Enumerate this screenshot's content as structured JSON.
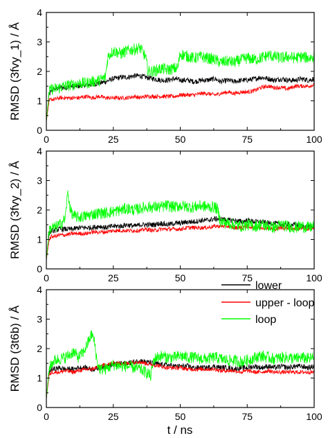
{
  "figure": {
    "xlabel": "t / ns",
    "legend": {
      "placement": "upper-right of bottom panel",
      "entries": [
        {
          "label": "lower",
          "color": "#000000"
        },
        {
          "label": "upper - loop",
          "color": "#ff0000"
        },
        {
          "label": "loop",
          "color": "#00ff00"
        }
      ]
    }
  },
  "chart_data": [
    {
      "type": "line",
      "ylabel": "RMSD (3fvy_1) / Å",
      "xlim": [
        0,
        100
      ],
      "ylim": [
        0,
        4
      ],
      "xticks": [
        0,
        25,
        50,
        75,
        100
      ],
      "yticks": [
        0,
        1,
        2,
        3,
        4
      ],
      "grid": false,
      "series": [
        {
          "name": "lower",
          "color": "#000000",
          "x": [
            0,
            1,
            2,
            3,
            5,
            7,
            10,
            12,
            15,
            17,
            20,
            22,
            25,
            28,
            30,
            33,
            35,
            37,
            40,
            43,
            45,
            48,
            50,
            53,
            55,
            58,
            60,
            63,
            65,
            68,
            70,
            73,
            75,
            78,
            80,
            83,
            85,
            88,
            90,
            93,
            95,
            98,
            100
          ],
          "y": [
            0.3,
            1.2,
            1.35,
            1.4,
            1.45,
            1.45,
            1.5,
            1.5,
            1.55,
            1.55,
            1.6,
            1.65,
            1.75,
            1.8,
            1.8,
            1.85,
            1.85,
            1.8,
            1.75,
            1.7,
            1.7,
            1.75,
            1.7,
            1.7,
            1.65,
            1.7,
            1.7,
            1.75,
            1.65,
            1.7,
            1.65,
            1.7,
            1.7,
            1.75,
            1.8,
            1.75,
            1.7,
            1.75,
            1.7,
            1.7,
            1.75,
            1.7,
            1.75
          ]
        },
        {
          "name": "upper - loop",
          "color": "#ff0000",
          "x": [
            0,
            1,
            2,
            3,
            5,
            7,
            10,
            12,
            15,
            17,
            20,
            22,
            25,
            28,
            30,
            33,
            35,
            37,
            40,
            43,
            45,
            48,
            50,
            53,
            55,
            58,
            60,
            63,
            65,
            68,
            70,
            73,
            75,
            78,
            80,
            83,
            85,
            88,
            90,
            93,
            95,
            98,
            100
          ],
          "y": [
            0.3,
            1.0,
            1.05,
            1.05,
            1.1,
            1.1,
            1.1,
            1.1,
            1.15,
            1.1,
            1.15,
            1.1,
            1.1,
            1.1,
            1.1,
            1.15,
            1.1,
            1.15,
            1.15,
            1.15,
            1.15,
            1.15,
            1.2,
            1.2,
            1.2,
            1.25,
            1.25,
            1.2,
            1.25,
            1.3,
            1.25,
            1.3,
            1.3,
            1.35,
            1.45,
            1.5,
            1.45,
            1.45,
            1.4,
            1.5,
            1.5,
            1.5,
            1.55
          ]
        },
        {
          "name": "loop",
          "color": "#00ff00",
          "x": [
            0,
            1,
            2,
            3,
            5,
            7,
            10,
            12,
            15,
            17,
            20,
            22,
            23,
            25,
            28,
            30,
            33,
            35,
            37,
            38,
            40,
            43,
            45,
            48,
            49,
            50,
            53,
            55,
            58,
            60,
            63,
            65,
            68,
            70,
            73,
            75,
            78,
            80,
            83,
            85,
            88,
            90,
            93,
            95,
            98,
            100
          ],
          "y": [
            0.3,
            1.3,
            1.4,
            1.4,
            1.45,
            1.5,
            1.55,
            1.6,
            1.6,
            1.65,
            1.7,
            1.8,
            2.5,
            2.7,
            2.6,
            2.7,
            2.75,
            2.8,
            2.5,
            2.0,
            2.0,
            2.1,
            2.05,
            2.1,
            2.1,
            2.6,
            2.5,
            2.45,
            2.5,
            2.45,
            2.4,
            2.3,
            2.35,
            2.3,
            2.4,
            2.45,
            2.4,
            2.45,
            2.55,
            2.5,
            2.45,
            2.5,
            2.45,
            2.5,
            2.45,
            2.5
          ]
        }
      ]
    },
    {
      "type": "line",
      "ylabel": "RMSD (3fvy_2) / Å",
      "xlim": [
        0,
        100
      ],
      "ylim": [
        0,
        4
      ],
      "xticks": [
        0,
        25,
        50,
        75,
        100
      ],
      "yticks": [
        0,
        1,
        2,
        3,
        4
      ],
      "grid": false,
      "series": [
        {
          "name": "lower",
          "color": "#000000",
          "x": [
            0,
            1,
            2,
            3,
            5,
            7,
            10,
            12,
            15,
            17,
            20,
            22,
            25,
            28,
            30,
            33,
            35,
            37,
            40,
            43,
            45,
            48,
            50,
            53,
            55,
            58,
            60,
            63,
            65,
            68,
            70,
            73,
            75,
            78,
            80,
            83,
            85,
            88,
            90,
            93,
            95,
            98,
            100
          ],
          "y": [
            0.3,
            1.2,
            1.3,
            1.3,
            1.35,
            1.35,
            1.35,
            1.4,
            1.4,
            1.4,
            1.45,
            1.4,
            1.45,
            1.45,
            1.5,
            1.45,
            1.5,
            1.5,
            1.5,
            1.55,
            1.5,
            1.55,
            1.55,
            1.6,
            1.6,
            1.65,
            1.65,
            1.7,
            1.7,
            1.65,
            1.65,
            1.6,
            1.65,
            1.6,
            1.6,
            1.55,
            1.55,
            1.5,
            1.5,
            1.5,
            1.45,
            1.45,
            1.4
          ]
        },
        {
          "name": "upper - loop",
          "color": "#ff0000",
          "x": [
            0,
            1,
            2,
            3,
            5,
            7,
            10,
            12,
            15,
            17,
            20,
            22,
            25,
            28,
            30,
            33,
            35,
            37,
            40,
            43,
            45,
            48,
            50,
            53,
            55,
            58,
            60,
            63,
            65,
            68,
            70,
            73,
            75,
            78,
            80,
            83,
            85,
            88,
            90,
            93,
            95,
            98,
            100
          ],
          "y": [
            0.3,
            1.0,
            1.1,
            1.1,
            1.15,
            1.15,
            1.2,
            1.2,
            1.2,
            1.25,
            1.25,
            1.25,
            1.3,
            1.3,
            1.3,
            1.3,
            1.3,
            1.35,
            1.3,
            1.35,
            1.35,
            1.35,
            1.35,
            1.4,
            1.4,
            1.4,
            1.4,
            1.45,
            1.45,
            1.45,
            1.4,
            1.4,
            1.45,
            1.4,
            1.4,
            1.4,
            1.35,
            1.4,
            1.4,
            1.35,
            1.4,
            1.35,
            1.4
          ]
        },
        {
          "name": "loop",
          "color": "#00ff00",
          "x": [
            0,
            1,
            2,
            3,
            5,
            7,
            8,
            9,
            10,
            12,
            15,
            17,
            20,
            22,
            25,
            28,
            30,
            33,
            35,
            37,
            40,
            43,
            45,
            48,
            50,
            53,
            55,
            58,
            60,
            63,
            64,
            65,
            68,
            70,
            73,
            75,
            78,
            80,
            83,
            85,
            88,
            90,
            93,
            95,
            98,
            100
          ],
          "y": [
            0.3,
            1.3,
            1.4,
            1.4,
            1.5,
            1.7,
            2.6,
            2.0,
            1.8,
            1.75,
            1.8,
            1.85,
            1.9,
            1.9,
            1.95,
            2.0,
            2.05,
            2.0,
            2.05,
            2.1,
            2.1,
            2.1,
            2.15,
            2.1,
            2.15,
            2.1,
            2.1,
            2.15,
            2.1,
            2.1,
            2.0,
            1.6,
            1.55,
            1.5,
            1.45,
            1.5,
            1.45,
            1.5,
            1.45,
            1.4,
            1.5,
            1.45,
            1.4,
            1.45,
            1.4,
            1.45
          ]
        }
      ]
    },
    {
      "type": "line",
      "ylabel": "RMSD (3t6b) / Å",
      "xlim": [
        0,
        100
      ],
      "ylim": [
        0,
        4
      ],
      "xticks": [
        0,
        25,
        50,
        75,
        100
      ],
      "yticks": [
        0,
        1,
        2,
        3,
        4
      ],
      "grid": false,
      "series": [
        {
          "name": "lower",
          "color": "#000000",
          "x": [
            0,
            1,
            2,
            3,
            5,
            7,
            10,
            12,
            15,
            17,
            20,
            22,
            25,
            28,
            30,
            33,
            35,
            37,
            40,
            43,
            45,
            48,
            50,
            53,
            55,
            58,
            60,
            63,
            65,
            68,
            70,
            73,
            75,
            78,
            80,
            83,
            85,
            88,
            90,
            93,
            95,
            98,
            100
          ],
          "y": [
            0.3,
            1.2,
            1.3,
            1.3,
            1.35,
            1.3,
            1.3,
            1.35,
            1.35,
            1.3,
            1.35,
            1.4,
            1.45,
            1.5,
            1.5,
            1.55,
            1.6,
            1.55,
            1.5,
            1.45,
            1.45,
            1.4,
            1.4,
            1.4,
            1.35,
            1.35,
            1.35,
            1.4,
            1.35,
            1.35,
            1.3,
            1.35,
            1.35,
            1.4,
            1.35,
            1.4,
            1.35,
            1.4,
            1.35,
            1.4,
            1.4,
            1.35,
            1.4
          ]
        },
        {
          "name": "upper - loop",
          "color": "#ff0000",
          "x": [
            0,
            1,
            2,
            3,
            5,
            7,
            10,
            12,
            15,
            17,
            20,
            22,
            25,
            28,
            30,
            33,
            35,
            37,
            40,
            43,
            45,
            48,
            50,
            53,
            55,
            58,
            60,
            63,
            65,
            68,
            70,
            73,
            75,
            78,
            80,
            83,
            85,
            88,
            90,
            93,
            95,
            98,
            100
          ],
          "y": [
            0.3,
            1.1,
            1.2,
            1.2,
            1.2,
            1.25,
            1.2,
            1.25,
            1.3,
            1.3,
            1.4,
            1.45,
            1.5,
            1.5,
            1.5,
            1.55,
            1.55,
            1.5,
            1.45,
            1.4,
            1.35,
            1.35,
            1.35,
            1.3,
            1.3,
            1.3,
            1.3,
            1.3,
            1.25,
            1.25,
            1.25,
            1.2,
            1.25,
            1.2,
            1.2,
            1.25,
            1.2,
            1.2,
            1.2,
            1.2,
            1.2,
            1.2,
            1.2
          ]
        },
        {
          "name": "loop",
          "color": "#00ff00",
          "x": [
            0,
            1,
            2,
            3,
            5,
            7,
            9,
            10,
            12,
            14,
            15,
            17,
            18,
            19,
            20,
            22,
            25,
            28,
            30,
            33,
            35,
            37,
            38,
            39,
            40,
            41,
            43,
            45,
            48,
            50,
            53,
            55,
            58,
            60,
            63,
            65,
            68,
            70,
            73,
            75,
            78,
            80,
            83,
            85,
            88,
            90,
            93,
            95,
            98,
            100
          ],
          "y": [
            0.3,
            1.3,
            1.5,
            1.6,
            1.65,
            1.7,
            1.8,
            1.9,
            1.7,
            1.9,
            2.1,
            2.5,
            2.2,
            1.5,
            1.3,
            1.3,
            1.45,
            1.4,
            1.4,
            1.35,
            1.3,
            1.2,
            1.15,
            1.05,
            1.6,
            1.7,
            1.75,
            1.7,
            1.7,
            1.75,
            1.7,
            1.7,
            1.65,
            1.65,
            1.7,
            1.65,
            1.6,
            1.6,
            1.55,
            1.6,
            1.7,
            1.75,
            1.7,
            1.65,
            1.7,
            1.7,
            1.65,
            1.7,
            1.65,
            1.7
          ]
        }
      ]
    }
  ]
}
